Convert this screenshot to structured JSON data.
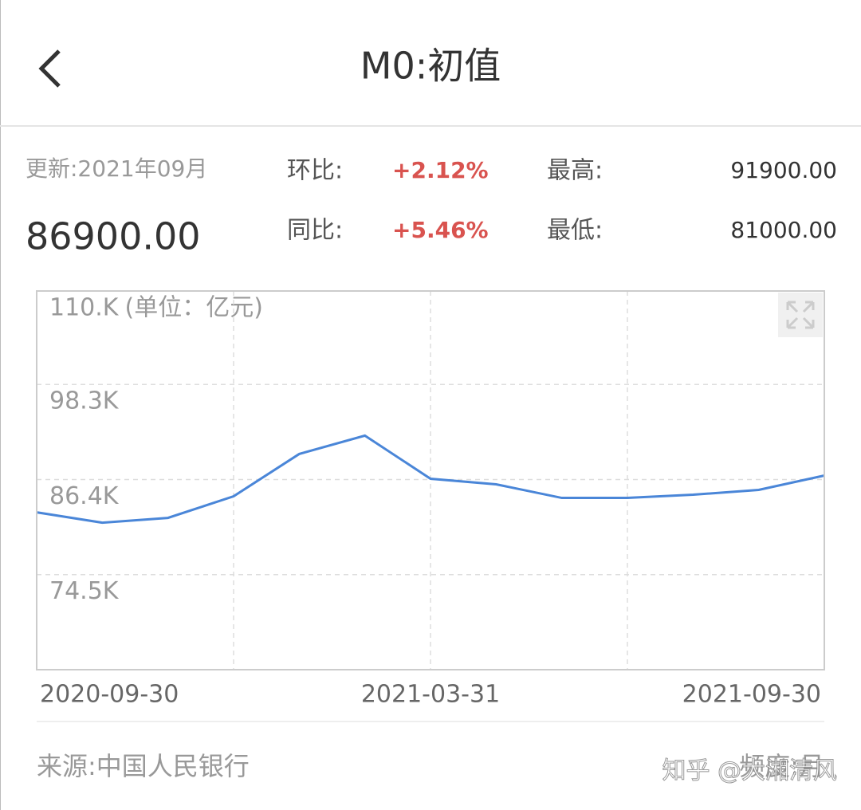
{
  "header": {
    "title": "M0:初值"
  },
  "info": {
    "updated": "更新:2021年09月",
    "current": "86900.00",
    "mom_label": "环比:",
    "mom": "+2.12%",
    "yoy_label": "同比:",
    "yoy": "+5.46%",
    "high_label": "最高:",
    "high": "91900.00",
    "low_label": "最低:",
    "low": "81000.00"
  },
  "chart_data": {
    "type": "line",
    "y_unit": "(单位：亿元)",
    "categories": [
      "2020-09-30",
      null,
      null,
      null,
      null,
      null,
      "2021-03-31",
      null,
      null,
      null,
      null,
      null,
      "2021-09-30"
    ],
    "series": [
      {
        "color": "#4a86d8",
        "values": [
          82300,
          81000,
          81600,
          84300,
          89600,
          91900,
          86500,
          85800,
          84100,
          84100,
          84500,
          85100,
          86900
        ]
      }
    ],
    "ylim": [
      62600,
      110000
    ],
    "yticks": [
      {
        "value": 74500,
        "label": "74.5K"
      },
      {
        "value": 86400,
        "label": "86.4K"
      },
      {
        "value": 98300,
        "label": "98.3K"
      },
      {
        "value": 110000,
        "label": "110.K"
      }
    ],
    "grid": true
  },
  "footer": {
    "source": "来源:中国人民银行",
    "frequency": "频度:月",
    "watermark": "知乎 @大湘清风"
  }
}
